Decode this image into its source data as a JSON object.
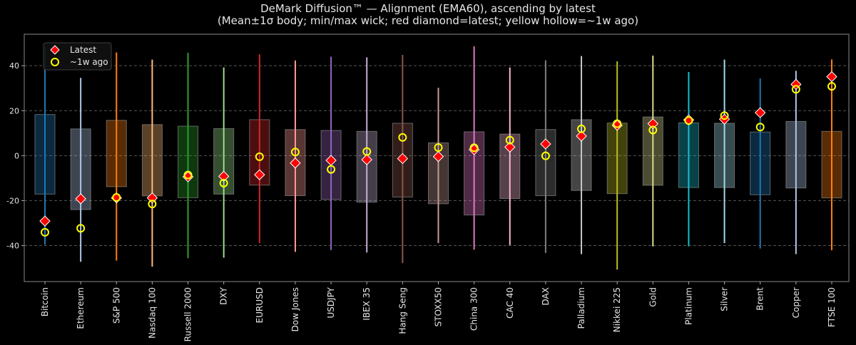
{
  "chart_data": {
    "type": "box-range",
    "title": "DeMark Diffusion™ — Alignment (EMA60), ascending by latest",
    "subtitle": "(Mean±1σ body; min/max wick; red diamond=latest; yellow hollow=~1w ago)",
    "xlabel": "",
    "ylabel": "",
    "ylim": [
      -56,
      54
    ],
    "yticks": [
      -40,
      -20,
      0,
      20,
      40
    ],
    "grid": "y-dashed",
    "legend": {
      "placement": "top-left",
      "entries": [
        {
          "label": "Latest",
          "marker": "diamond",
          "color": "#ff0000"
        },
        {
          "label": "~1w ago",
          "marker": "hollow-circle",
          "color": "#ffff00"
        }
      ]
    },
    "categories": [
      "Bitcoin",
      "Ethereum",
      "S&P 500",
      "Nasdaq 100",
      "Russell 2000",
      "DXY",
      "EURUSD",
      "Dow Jones",
      "USDJPY",
      "IBEX 35",
      "Hang Seng",
      "STOXX50",
      "China 300",
      "CAC 40",
      "DAX",
      "Palladium",
      "Nikkei 225",
      "Gold",
      "Platinum",
      "Silver",
      "Brent",
      "Copper",
      "FTSE 100"
    ],
    "colors": [
      "#1f77b4",
      "#aec7e8",
      "#ff7f0e",
      "#ffbb78",
      "#2ca02c",
      "#98df8a",
      "#d62728",
      "#ff9896",
      "#9467bd",
      "#c5b0d5",
      "#8c564b",
      "#c49c94",
      "#e377c2",
      "#f7b6d2",
      "#7f7f7f",
      "#c7c7c7",
      "#bcbd22",
      "#dbdb8d",
      "#17becf",
      "#9edae5",
      "#1f77b4",
      "#aec7e8",
      "#ff7f0e"
    ],
    "max": [
      48.2,
      34.6,
      45.9,
      42.7,
      45.7,
      39.2,
      45.1,
      42.3,
      44.0,
      43.7,
      44.8,
      30.2,
      48.6,
      39.2,
      42.4,
      44.3,
      41.9,
      44.5,
      37.2,
      42.7,
      34.3,
      37.7,
      42.8
    ],
    "min": [
      -39.6,
      -47.2,
      -46.7,
      -49.4,
      -45.6,
      -45.4,
      -38.9,
      -42.8,
      -42.0,
      -43.1,
      -47.8,
      -38.9,
      -41.8,
      -39.8,
      -43.3,
      -43.8,
      -50.7,
      -40.4,
      -40.3,
      -38.9,
      -41.3,
      -43.8,
      -42.1
    ],
    "mean_plus_sd": [
      18.3,
      11.9,
      15.7,
      13.8,
      13.1,
      12.0,
      16.0,
      11.6,
      11.2,
      10.8,
      14.4,
      5.7,
      10.6,
      9.6,
      11.6,
      16.0,
      14.5,
      17.2,
      14.6,
      14.4,
      10.5,
      15.2,
      10.8
    ],
    "mean_minus_sd": [
      -17.1,
      -24.0,
      -13.8,
      -17.9,
      -18.7,
      -17.1,
      -13.1,
      -17.8,
      -19.5,
      -20.7,
      -18.4,
      -21.4,
      -26.4,
      -19.1,
      -17.8,
      -15.5,
      -16.9,
      -13.2,
      -14.2,
      -14.2,
      -17.4,
      -14.4,
      -18.8
    ],
    "latest": [
      -29.1,
      -19.2,
      -18.8,
      -18.8,
      -9.4,
      -9.2,
      -8.5,
      -3.3,
      -2.1,
      -1.8,
      -1.3,
      -0.4,
      2.7,
      3.8,
      5.2,
      8.7,
      13.5,
      14.2,
      15.9,
      16.2,
      19.1,
      31.7,
      35.1
    ],
    "week_ago": [
      -34.1,
      -32.3,
      -18.6,
      -21.5,
      -8.6,
      -12.2,
      -0.5,
      1.6,
      -6.1,
      1.8,
      8.1,
      3.6,
      3.5,
      6.9,
      -0.1,
      11.9,
      14.2,
      11.4,
      15.6,
      17.8,
      12.7,
      29.5,
      30.8
    ]
  }
}
